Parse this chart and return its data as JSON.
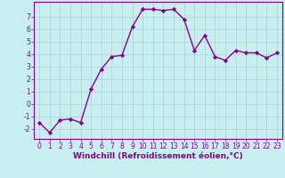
{
  "xlabel": "Windchill (Refroidissement éolien,°C)",
  "x_values": [
    0,
    1,
    2,
    3,
    4,
    5,
    6,
    7,
    8,
    9,
    10,
    11,
    12,
    13,
    14,
    15,
    16,
    17,
    18,
    19,
    20,
    21,
    22,
    23
  ],
  "y_values": [
    -1.5,
    -2.3,
    -1.3,
    -1.2,
    -1.5,
    1.2,
    2.8,
    3.8,
    3.9,
    6.2,
    7.6,
    7.6,
    7.5,
    7.6,
    6.8,
    4.3,
    5.5,
    3.8,
    3.5,
    4.3,
    4.1,
    4.1,
    3.7,
    4.1
  ],
  "line_color": "#8B008B",
  "marker": "D",
  "marker_size": 2.2,
  "background_color": "#c8eef0",
  "grid_color": "#aad8dc",
  "ylim": [
    -2.8,
    8.2
  ],
  "yticks": [
    -2,
    -1,
    0,
    1,
    2,
    3,
    4,
    5,
    6,
    7
  ],
  "xlim": [
    -0.5,
    23.5
  ],
  "xticks": [
    0,
    1,
    2,
    3,
    4,
    5,
    6,
    7,
    8,
    9,
    10,
    11,
    12,
    13,
    14,
    15,
    16,
    17,
    18,
    19,
    20,
    21,
    22,
    23
  ],
  "tick_color": "#8B008B",
  "tick_fontsize": 5.5,
  "label_fontsize": 6.5,
  "line_width": 1.0,
  "spine_color": "#8B008B"
}
